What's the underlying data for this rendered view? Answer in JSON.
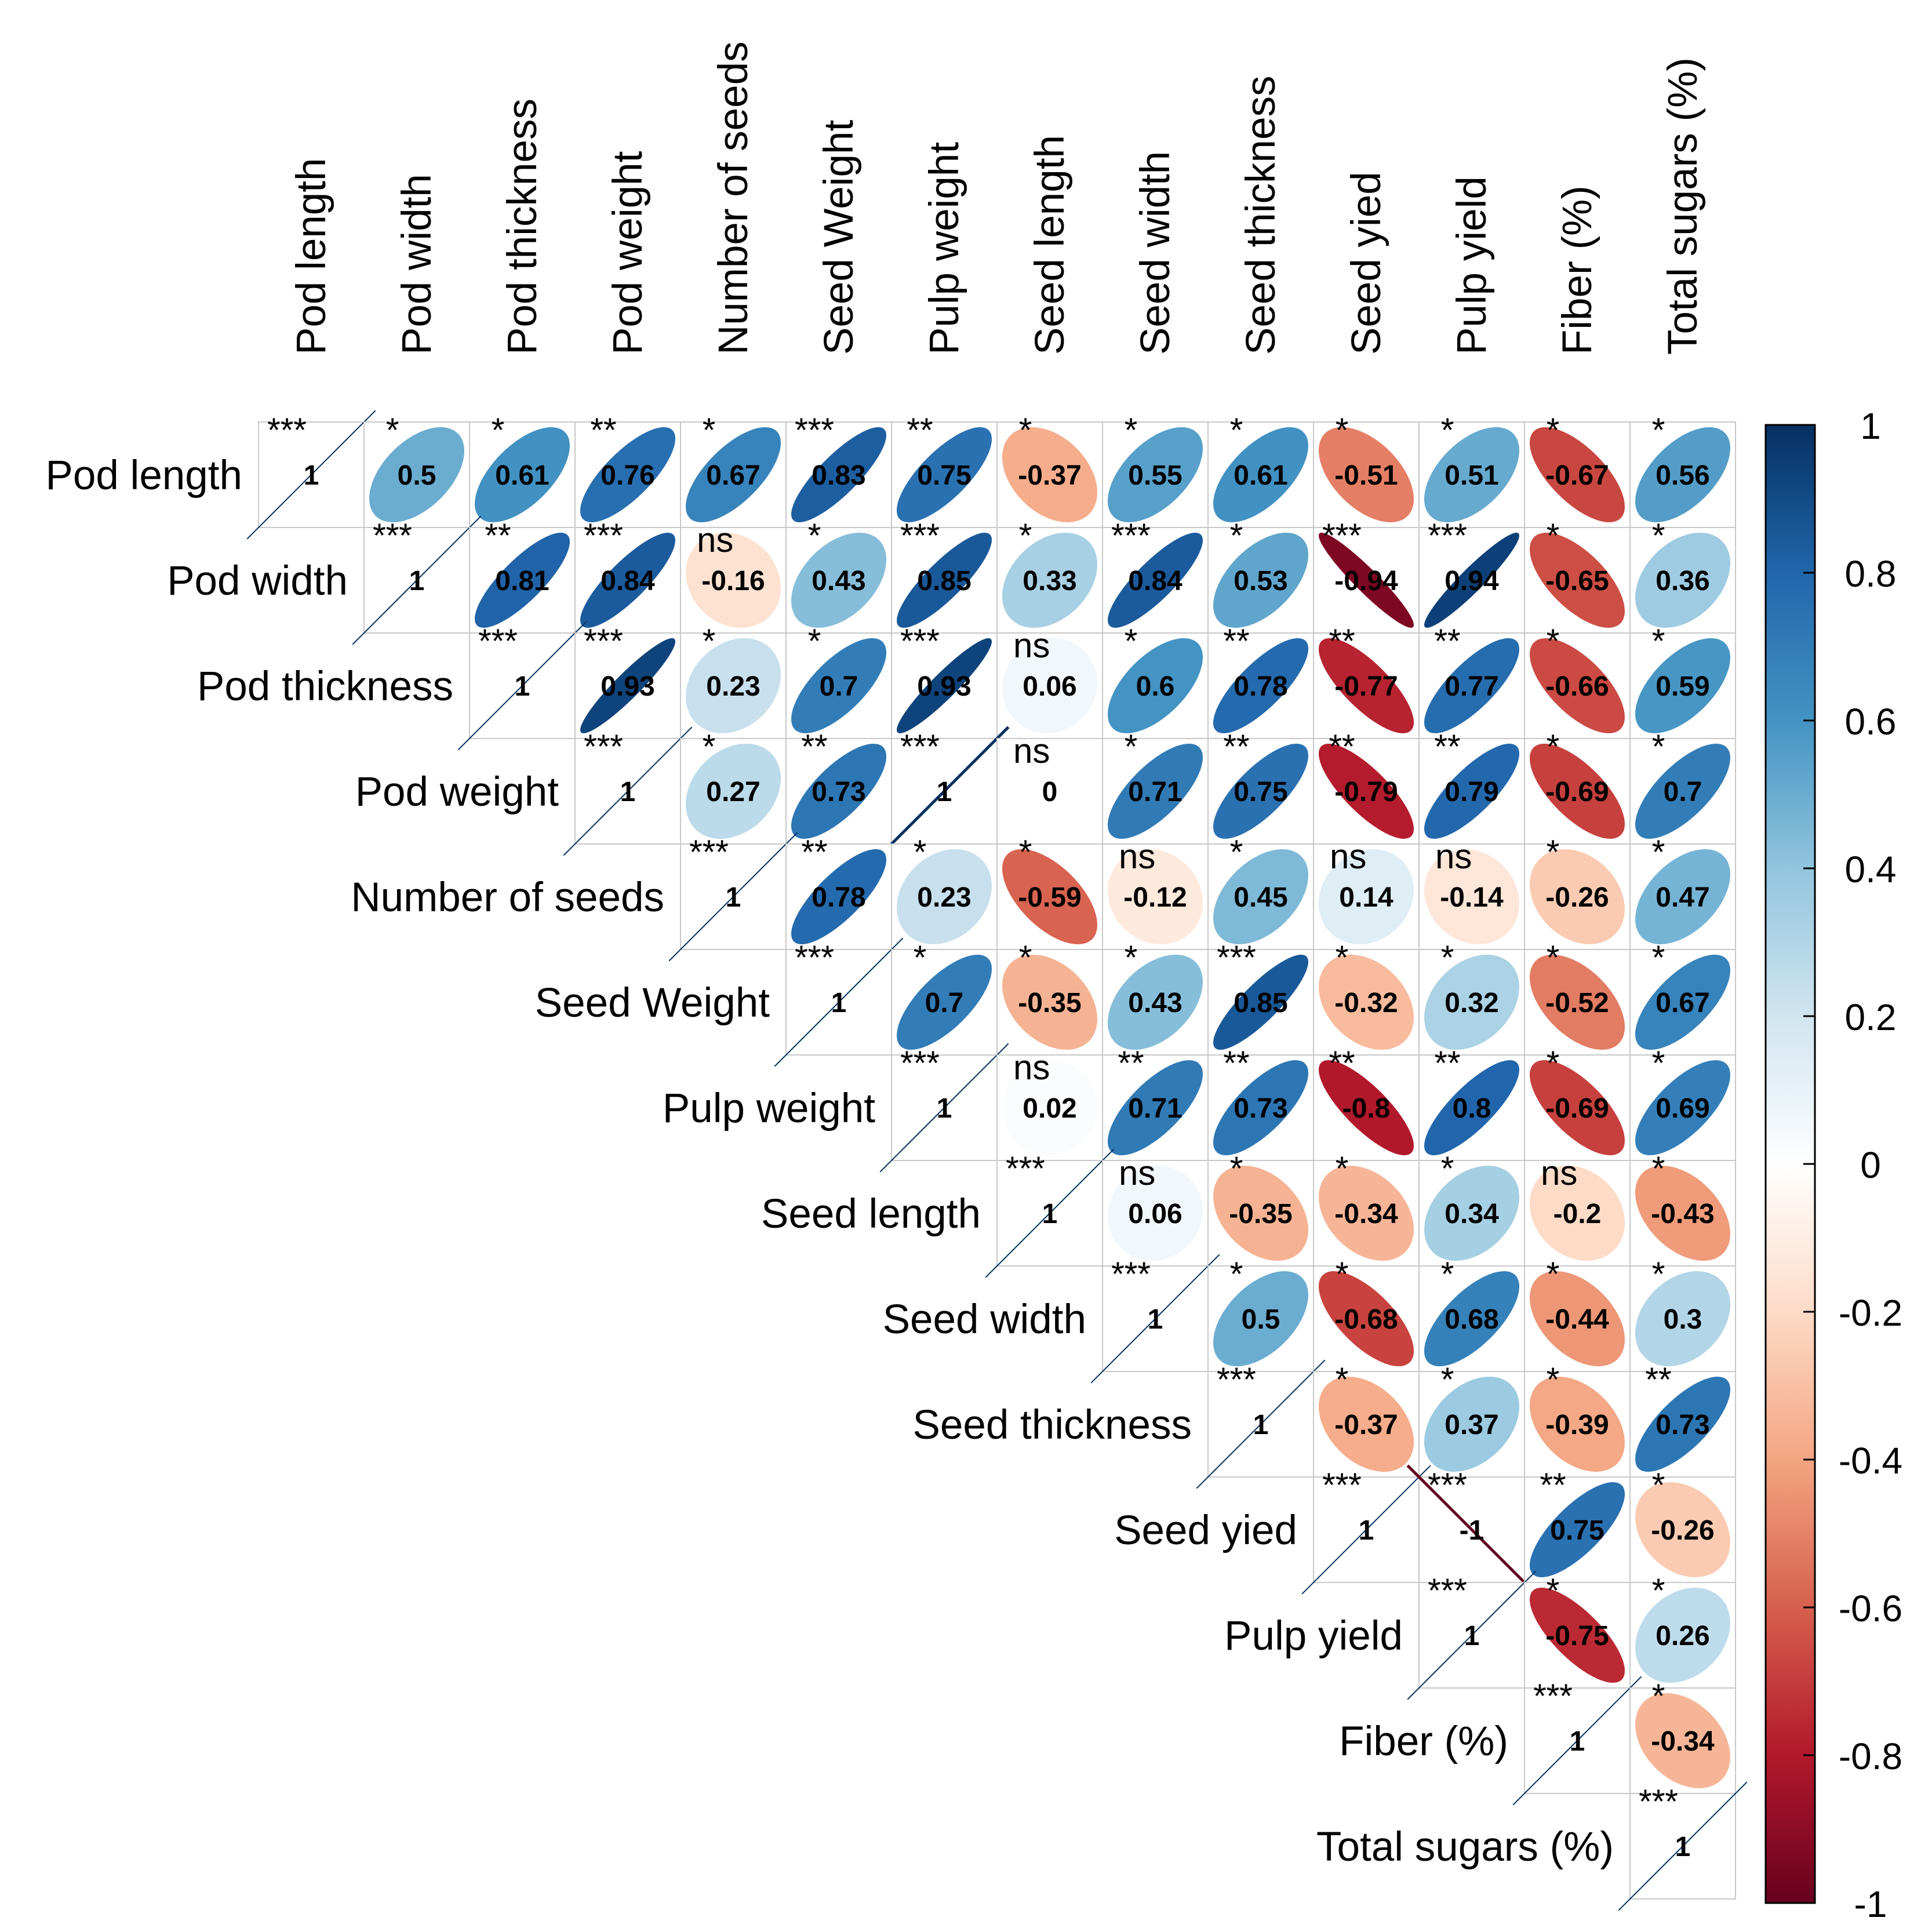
{
  "chart_data": {
    "type": "heatmap",
    "subtype": "correlation-ellipse-upper",
    "title": "",
    "variables": [
      "Pod length",
      "Pod width",
      "Pod thickness",
      "Pod weight",
      "Number of seeds",
      "Seed Weight",
      "Pulp weight",
      "Seed length",
      "Seed width",
      "Seed thickness",
      "Seed yied",
      "Pulp yield",
      "Fiber (%)",
      "Total sugars (%)"
    ],
    "values": [
      [
        "1",
        "0.5",
        "0.61",
        "0.76",
        "0.67",
        "0.83",
        "0.75",
        "-0.37",
        "0.55",
        "0.61",
        "-0.51",
        "0.51",
        "-0.67",
        "0.56"
      ],
      [
        "",
        "1",
        "0.81",
        "0.84",
        "-0.16",
        "0.43",
        "0.85",
        "0.33",
        "0.84",
        "0.53",
        "-0.94",
        "0.94",
        "-0.65",
        "0.36"
      ],
      [
        "",
        "",
        "1",
        "0.93",
        "0.23",
        "0.7",
        "0.93",
        "0.06",
        "0.6",
        "0.78",
        "-0.77",
        "0.77",
        "-0.66",
        "0.59"
      ],
      [
        "",
        "",
        "",
        "1",
        "0.27",
        "0.73",
        "1",
        "0",
        "0.71",
        "0.75",
        "-0.79",
        "0.79",
        "-0.69",
        "0.7"
      ],
      [
        "",
        "",
        "",
        "",
        "1",
        "0.78",
        "0.23",
        "-0.59",
        "-0.12",
        "0.45",
        "0.14",
        "-0.14",
        "-0.26",
        "0.47"
      ],
      [
        "",
        "",
        "",
        "",
        "",
        "1",
        "0.7",
        "-0.35",
        "0.43",
        "0.85",
        "-0.32",
        "0.32",
        "-0.52",
        "0.67"
      ],
      [
        "",
        "",
        "",
        "",
        "",
        "",
        "1",
        "0.02",
        "0.71",
        "0.73",
        "-0.8",
        "0.8",
        "-0.69",
        "0.69"
      ],
      [
        "",
        "",
        "",
        "",
        "",
        "",
        "",
        "1",
        "0.06",
        "-0.35",
        "-0.34",
        "0.34",
        "-0.2",
        "-0.43"
      ],
      [
        "",
        "",
        "",
        "",
        "",
        "",
        "",
        "",
        "1",
        "0.5",
        "-0.68",
        "0.68",
        "-0.44",
        "0.3"
      ],
      [
        "",
        "",
        "",
        "",
        "",
        "",
        "",
        "",
        "",
        "1",
        "-0.37",
        "0.37",
        "-0.39",
        "0.73"
      ],
      [
        "",
        "",
        "",
        "",
        "",
        "",
        "",
        "",
        "",
        "",
        "1",
        "-1",
        "0.75",
        "-0.26"
      ],
      [
        "",
        "",
        "",
        "",
        "",
        "",
        "",
        "",
        "",
        "",
        "",
        "1",
        "-0.75",
        "0.26"
      ],
      [
        "",
        "",
        "",
        "",
        "",
        "",
        "",
        "",
        "",
        "",
        "",
        "",
        "1",
        "-0.34"
      ],
      [
        "",
        "",
        "",
        "",
        "",
        "",
        "",
        "",
        "",
        "",
        "",
        "",
        "",
        "1"
      ]
    ],
    "significance": [
      [
        "***",
        "*",
        "*",
        "**",
        "*",
        "***",
        "**",
        "*",
        "*",
        "*",
        "*",
        "*",
        "*",
        "*"
      ],
      [
        "",
        "***",
        "**",
        "***",
        "ns",
        "*",
        "***",
        "*",
        "***",
        "*",
        "***",
        "***",
        "*",
        "*"
      ],
      [
        "",
        "",
        "***",
        "***",
        "*",
        "*",
        "***",
        "ns",
        "*",
        "**",
        "**",
        "**",
        "*",
        "*"
      ],
      [
        "",
        "",
        "",
        "***",
        "*",
        "**",
        "***",
        "ns",
        "*",
        "**",
        "**",
        "**",
        "*",
        "*"
      ],
      [
        "",
        "",
        "",
        "",
        "***",
        "**",
        "*",
        "*",
        "ns",
        "*",
        "ns",
        "ns",
        "*",
        "*"
      ],
      [
        "",
        "",
        "",
        "",
        "",
        "***",
        "*",
        "*",
        "*",
        "***",
        "*",
        "*",
        "*",
        "*"
      ],
      [
        "",
        "",
        "",
        "",
        "",
        "",
        "***",
        "ns",
        "**",
        "**",
        "**",
        "**",
        "*",
        "*"
      ],
      [
        "",
        "",
        "",
        "",
        "",
        "",
        "",
        "***",
        "ns",
        "*",
        "*",
        "*",
        "ns",
        "*"
      ],
      [
        "",
        "",
        "",
        "",
        "",
        "",
        "",
        "",
        "***",
        "*",
        "*",
        "*",
        "*",
        "*"
      ],
      [
        "",
        "",
        "",
        "",
        "",
        "",
        "",
        "",
        "",
        "***",
        "*",
        "*",
        "*",
        "**"
      ],
      [
        "",
        "",
        "",
        "",
        "",
        "",
        "",
        "",
        "",
        "",
        "***",
        "***",
        "**",
        "*"
      ],
      [
        "",
        "",
        "",
        "",
        "",
        "",
        "",
        "",
        "",
        "",
        "",
        "***",
        "*",
        "*"
      ],
      [
        "",
        "",
        "",
        "",
        "",
        "",
        "",
        "",
        "",
        "",
        "",
        "",
        "***",
        "*"
      ],
      [
        "",
        "",
        "",
        "",
        "",
        "",
        "",
        "",
        "",
        "",
        "",
        "",
        "",
        "***"
      ]
    ],
    "colorbar": {
      "range": [
        -1,
        1
      ],
      "tick_labels": [
        "1",
        "0.8",
        "0.6",
        "0.4",
        "0.2",
        "0",
        "-0.2",
        "-0.4",
        "-0.6",
        "-0.8",
        "-1"
      ],
      "tick_values": [
        1,
        0.8,
        0.6,
        0.4,
        0.2,
        0,
        -0.2,
        -0.4,
        -0.6,
        -0.8,
        -1
      ],
      "palette": [
        "#67001F",
        "#B2182B",
        "#D6604D",
        "#F4A582",
        "#FDDBC7",
        "#FFFFFF",
        "#D1E5F0",
        "#92C5DE",
        "#4393C3",
        "#2166AC",
        "#053061"
      ]
    }
  }
}
